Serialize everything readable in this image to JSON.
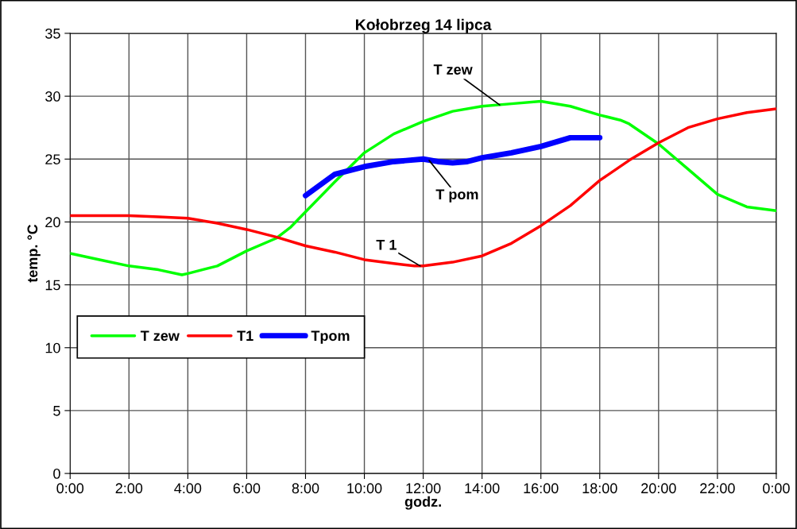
{
  "chart_data": {
    "type": "line",
    "title": "Kołobrzeg 14 lipca",
    "xlabel": "godz.",
    "ylabel": "temp. °C",
    "series": [
      {
        "name": "T zew",
        "color": "#00ff00",
        "x": [
          0,
          1,
          2,
          3,
          3.8,
          4,
          5,
          6,
          7,
          7.5,
          8,
          9,
          10,
          11,
          12,
          13,
          14,
          15,
          16,
          17,
          18,
          18.7,
          19,
          20,
          21,
          22,
          23,
          24
        ],
        "values": [
          17.5,
          17.0,
          16.5,
          16.2,
          15.8,
          15.9,
          16.5,
          17.7,
          18.7,
          19.6,
          20.8,
          23.2,
          25.5,
          27.0,
          28.0,
          28.8,
          29.2,
          29.4,
          29.6,
          29.2,
          28.5,
          28.1,
          27.8,
          26.2,
          24.2,
          22.2,
          21.2,
          20.9
        ]
      },
      {
        "name": "T1",
        "color": "#ff0000",
        "x": [
          0,
          2,
          3,
          4,
          5,
          6,
          7,
          8,
          9,
          10,
          11,
          11.7,
          12,
          13,
          14,
          15,
          16,
          17,
          18,
          19,
          20,
          21,
          22,
          23,
          24
        ],
        "values": [
          20.5,
          20.5,
          20.4,
          20.3,
          19.9,
          19.4,
          18.8,
          18.1,
          17.6,
          17.0,
          16.7,
          16.5,
          16.5,
          16.8,
          17.3,
          18.3,
          19.7,
          21.3,
          23.3,
          24.9,
          26.3,
          27.5,
          28.2,
          28.7,
          29.0
        ]
      },
      {
        "name": "Tpom",
        "color": "#0000ff",
        "x": [
          8,
          9,
          10,
          11,
          12,
          12.5,
          13,
          13.5,
          14,
          15,
          16,
          17,
          18
        ],
        "values": [
          22.1,
          23.8,
          24.4,
          24.8,
          25.0,
          24.8,
          24.7,
          24.8,
          25.1,
          25.5,
          26.0,
          26.7,
          26.7
        ]
      }
    ],
    "annotations": [
      {
        "text": "T zew",
        "x": 14.6,
        "y": 29.3
      },
      {
        "text": "T pom",
        "x": 12.2,
        "y": 24.9
      },
      {
        "text": "T 1",
        "x": 11.9,
        "y": 16.5
      }
    ],
    "xlim": [
      0,
      24
    ],
    "xticks": [
      {
        "value": 0,
        "label": "0:00"
      },
      {
        "value": 2,
        "label": "2:00"
      },
      {
        "value": 4,
        "label": "4:00"
      },
      {
        "value": 6,
        "label": "6:00"
      },
      {
        "value": 8,
        "label": "8:00"
      },
      {
        "value": 10,
        "label": "10:00"
      },
      {
        "value": 12,
        "label": "12:00"
      },
      {
        "value": 14,
        "label": "14:00"
      },
      {
        "value": 16,
        "label": "16:00"
      },
      {
        "value": 18,
        "label": "18:00"
      },
      {
        "value": 20,
        "label": "20:00"
      },
      {
        "value": 22,
        "label": "22:00"
      },
      {
        "value": 24,
        "label": "0:00"
      }
    ],
    "ylim": [
      0,
      35
    ],
    "yticks": [
      0,
      5,
      10,
      15,
      20,
      25,
      30,
      35
    ],
    "grid": true,
    "legend": "left",
    "marker": "none",
    "line_style": "solid"
  }
}
